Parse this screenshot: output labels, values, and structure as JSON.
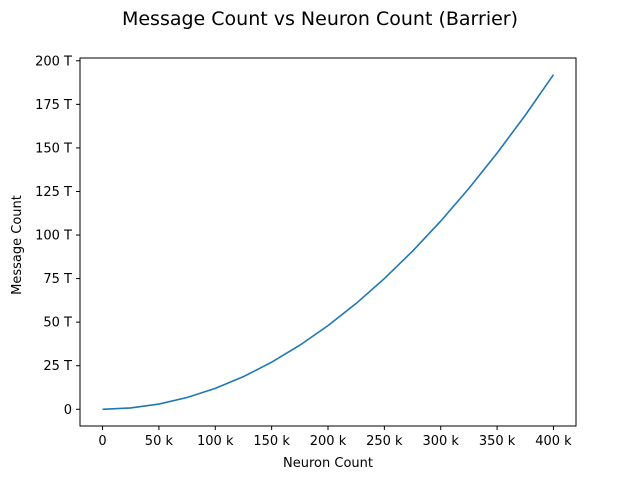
{
  "chart_data": {
    "type": "line",
    "title": "Message Count vs Neuron Count (Barrier)",
    "xlabel": "Neuron Count",
    "ylabel": "Message Count",
    "xlim": [
      -20000,
      420000
    ],
    "ylim": [
      -9600000000000,
      201600000000000
    ],
    "x_ticks": [
      {
        "value": 0,
        "label": "0"
      },
      {
        "value": 50000,
        "label": "50 k"
      },
      {
        "value": 100000,
        "label": "100 k"
      },
      {
        "value": 150000,
        "label": "150 k"
      },
      {
        "value": 200000,
        "label": "200 k"
      },
      {
        "value": 250000,
        "label": "250 k"
      },
      {
        "value": 300000,
        "label": "300 k"
      },
      {
        "value": 350000,
        "label": "350 k"
      },
      {
        "value": 400000,
        "label": "400 k"
      }
    ],
    "y_ticks": [
      {
        "value": 0,
        "label": "0"
      },
      {
        "value": 25000000000000,
        "label": "25 T"
      },
      {
        "value": 50000000000000,
        "label": "50 T"
      },
      {
        "value": 75000000000000,
        "label": "75 T"
      },
      {
        "value": 100000000000000,
        "label": "100 T"
      },
      {
        "value": 125000000000000,
        "label": "125 T"
      },
      {
        "value": 150000000000000,
        "label": "150 T"
      },
      {
        "value": 175000000000000,
        "label": "175 T"
      },
      {
        "value": 200000000000000,
        "label": "200 T"
      }
    ],
    "grid": false,
    "series": [
      {
        "color": "#1f77b4",
        "x": [
          0,
          25000,
          50000,
          75000,
          100000,
          125000,
          150000,
          175000,
          200000,
          225000,
          250000,
          275000,
          300000,
          325000,
          350000,
          375000,
          400000
        ],
        "y": [
          0,
          750000000000,
          3000000000000,
          6750000000000,
          12000000000000,
          18750000000000,
          27000000000000,
          36750000000000,
          48000000000000,
          60750000000000,
          75000000000000,
          90750000000000,
          108000000000000,
          126750000000000,
          147000000000000,
          168750000000000,
          192000000000000
        ]
      }
    ]
  }
}
